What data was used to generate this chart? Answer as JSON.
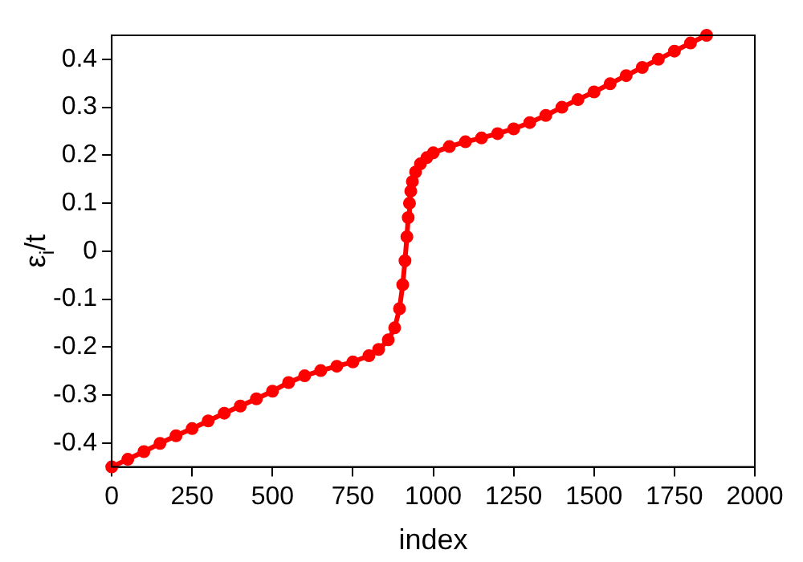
{
  "chart_data": {
    "type": "line",
    "xlabel": "index",
    "ylabel": "ε$_{i}$/t",
    "xlim": [
      0,
      2000
    ],
    "xticks": [
      0,
      250,
      500,
      750,
      1000,
      1250,
      1500,
      1750,
      2000
    ],
    "ylim": [
      -0.45,
      0.45
    ],
    "yticks": [
      -0.4,
      -0.3,
      -0.2,
      -0.1,
      0,
      0.1,
      0.2,
      0.3,
      0.4
    ],
    "grid": false,
    "legend": false,
    "marker": "circle",
    "line_style": "solid",
    "series": [
      {
        "color": "#ff0000",
        "x": [
          0,
          50,
          100,
          150,
          200,
          250,
          300,
          350,
          400,
          450,
          500,
          550,
          600,
          650,
          700,
          750,
          800,
          830,
          860,
          880,
          895,
          905,
          912,
          918,
          922,
          926,
          930,
          935,
          945,
          960,
          980,
          1000,
          1050,
          1100,
          1150,
          1200,
          1250,
          1300,
          1350,
          1400,
          1450,
          1500,
          1550,
          1600,
          1650,
          1700,
          1750,
          1800,
          1850
        ],
        "values": [
          -0.45,
          -0.434,
          -0.418,
          -0.401,
          -0.385,
          -0.37,
          -0.354,
          -0.338,
          -0.323,
          -0.308,
          -0.292,
          -0.274,
          -0.26,
          -0.249,
          -0.24,
          -0.231,
          -0.218,
          -0.205,
          -0.185,
          -0.16,
          -0.12,
          -0.07,
          -0.02,
          0.03,
          0.07,
          0.1,
          0.125,
          0.145,
          0.165,
          0.182,
          0.195,
          0.205,
          0.218,
          0.228,
          0.236,
          0.245,
          0.255,
          0.268,
          0.283,
          0.3,
          0.316,
          0.332,
          0.349,
          0.366,
          0.383,
          0.4,
          0.417,
          0.434,
          0.45
        ]
      }
    ]
  }
}
